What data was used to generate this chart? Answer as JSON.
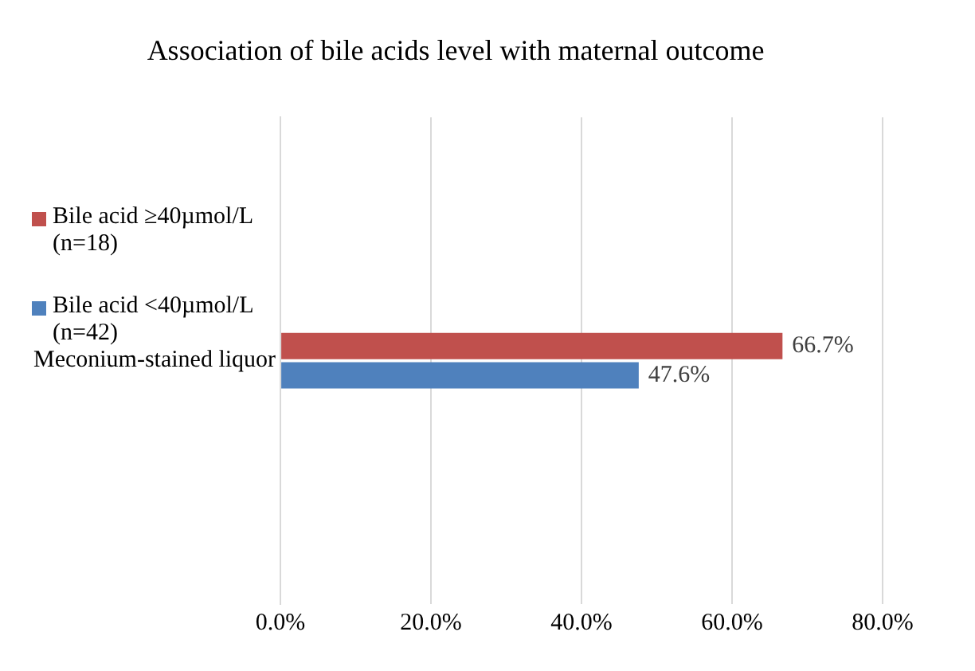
{
  "chart_data": {
    "type": "bar",
    "orientation": "horizontal",
    "title": "Association of bile acids level with maternal outcome",
    "categories": [
      "Meconium-stained liquor"
    ],
    "series": [
      {
        "name": "Bile acid ≥40µmol/L (n=18)",
        "color": "#c0504d",
        "values": [
          66.7
        ],
        "value_labels": [
          "66.7%"
        ]
      },
      {
        "name": "Bile acid <40µmol/L (n=42)",
        "color": "#4f81bd",
        "values": [
          47.6
        ],
        "value_labels": [
          "47.6%"
        ]
      }
    ],
    "xlim": [
      0,
      80
    ],
    "xticks": [
      {
        "value": 0,
        "label": "0.0%"
      },
      {
        "value": 20,
        "label": "20.0%"
      },
      {
        "value": 40,
        "label": "40.0%"
      },
      {
        "value": 60,
        "label": "60.0%"
      },
      {
        "value": 80,
        "label": "80.0%"
      }
    ],
    "grid": "x",
    "legend": "left"
  }
}
